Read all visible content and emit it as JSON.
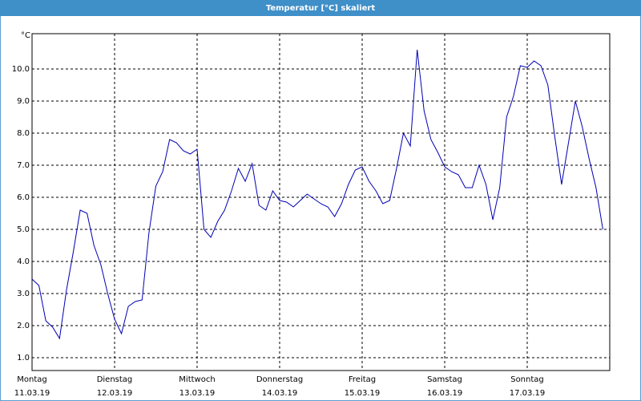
{
  "chart_data": {
    "type": "line",
    "title": "Temperatur [°C] skaliert",
    "y_label": "°C",
    "x": [
      0,
      2,
      4,
      6,
      8,
      10,
      12,
      14,
      16,
      18,
      20,
      22,
      24,
      26,
      28,
      30,
      32,
      34,
      36,
      38,
      40,
      42,
      44,
      46,
      48,
      50,
      52,
      54,
      56,
      58,
      60,
      62,
      64,
      66,
      68,
      70,
      72,
      74,
      76,
      78,
      80,
      82,
      84,
      86,
      88,
      90,
      92,
      94,
      96,
      98,
      100,
      102,
      104,
      106,
      108,
      110,
      112,
      114,
      116,
      118,
      120,
      122,
      124,
      126,
      128,
      130,
      132,
      134,
      136,
      138,
      140,
      142,
      144,
      146,
      148,
      150,
      152,
      154,
      156,
      158,
      160,
      162,
      164,
      166
    ],
    "series": [
      {
        "name": "Temperatur",
        "color": "#0000b4",
        "values": [
          3.45,
          3.25,
          2.15,
          1.95,
          1.6,
          3.1,
          4.3,
          5.6,
          5.5,
          4.5,
          3.9,
          3.0,
          2.2,
          1.75,
          2.6,
          2.75,
          2.8,
          4.9,
          6.35,
          6.8,
          7.8,
          7.7,
          7.45,
          7.35,
          7.5,
          5.0,
          4.75,
          5.25,
          5.6,
          6.2,
          6.9,
          6.5,
          7.05,
          5.75,
          5.6,
          6.2,
          5.9,
          5.85,
          5.7,
          5.9,
          6.1,
          5.95,
          5.8,
          5.7,
          5.4,
          5.8,
          6.4,
          6.85,
          6.95,
          6.5,
          6.2,
          5.8,
          5.9,
          6.9,
          8.0,
          7.6,
          10.6,
          8.7,
          7.8,
          7.4,
          6.95,
          6.8,
          6.7,
          6.3,
          6.3,
          7.0,
          6.4,
          5.3,
          6.3,
          8.5,
          9.15,
          10.1,
          10.05,
          10.25,
          10.1,
          9.5,
          7.9,
          6.4,
          7.7,
          9.0,
          8.2,
          7.2,
          6.3,
          5.0
        ]
      }
    ],
    "xlim": [
      0,
      168
    ],
    "xticks": [
      {
        "value": 0,
        "label": "Montag",
        "date": "11.03.19"
      },
      {
        "value": 24,
        "label": "Dienstag",
        "date": "12.03.19"
      },
      {
        "value": 48,
        "label": "Mittwoch",
        "date": "13.03.19"
      },
      {
        "value": 72,
        "label": "Donnerstag",
        "date": "14.03.19"
      },
      {
        "value": 96,
        "label": "Freitag",
        "date": "15.03.19"
      },
      {
        "value": 120,
        "label": "Samstag",
        "date": "16.03.19"
      },
      {
        "value": 144,
        "label": "Sonntag",
        "date": "17.03.19"
      }
    ],
    "ylim": [
      0.6,
      11.1
    ],
    "yticks": [
      {
        "value": 1,
        "label": "1.0"
      },
      {
        "value": 2,
        "label": "2.0"
      },
      {
        "value": 3,
        "label": "3.0"
      },
      {
        "value": 4,
        "label": "4.0"
      },
      {
        "value": 5,
        "label": "5.0"
      },
      {
        "value": 6,
        "label": "6.0"
      },
      {
        "value": 7,
        "label": "7.0"
      },
      {
        "value": 8,
        "label": "8.0"
      },
      {
        "value": 9,
        "label": "9.0"
      },
      {
        "value": 10,
        "label": "10.0"
      }
    ],
    "grid": true
  }
}
